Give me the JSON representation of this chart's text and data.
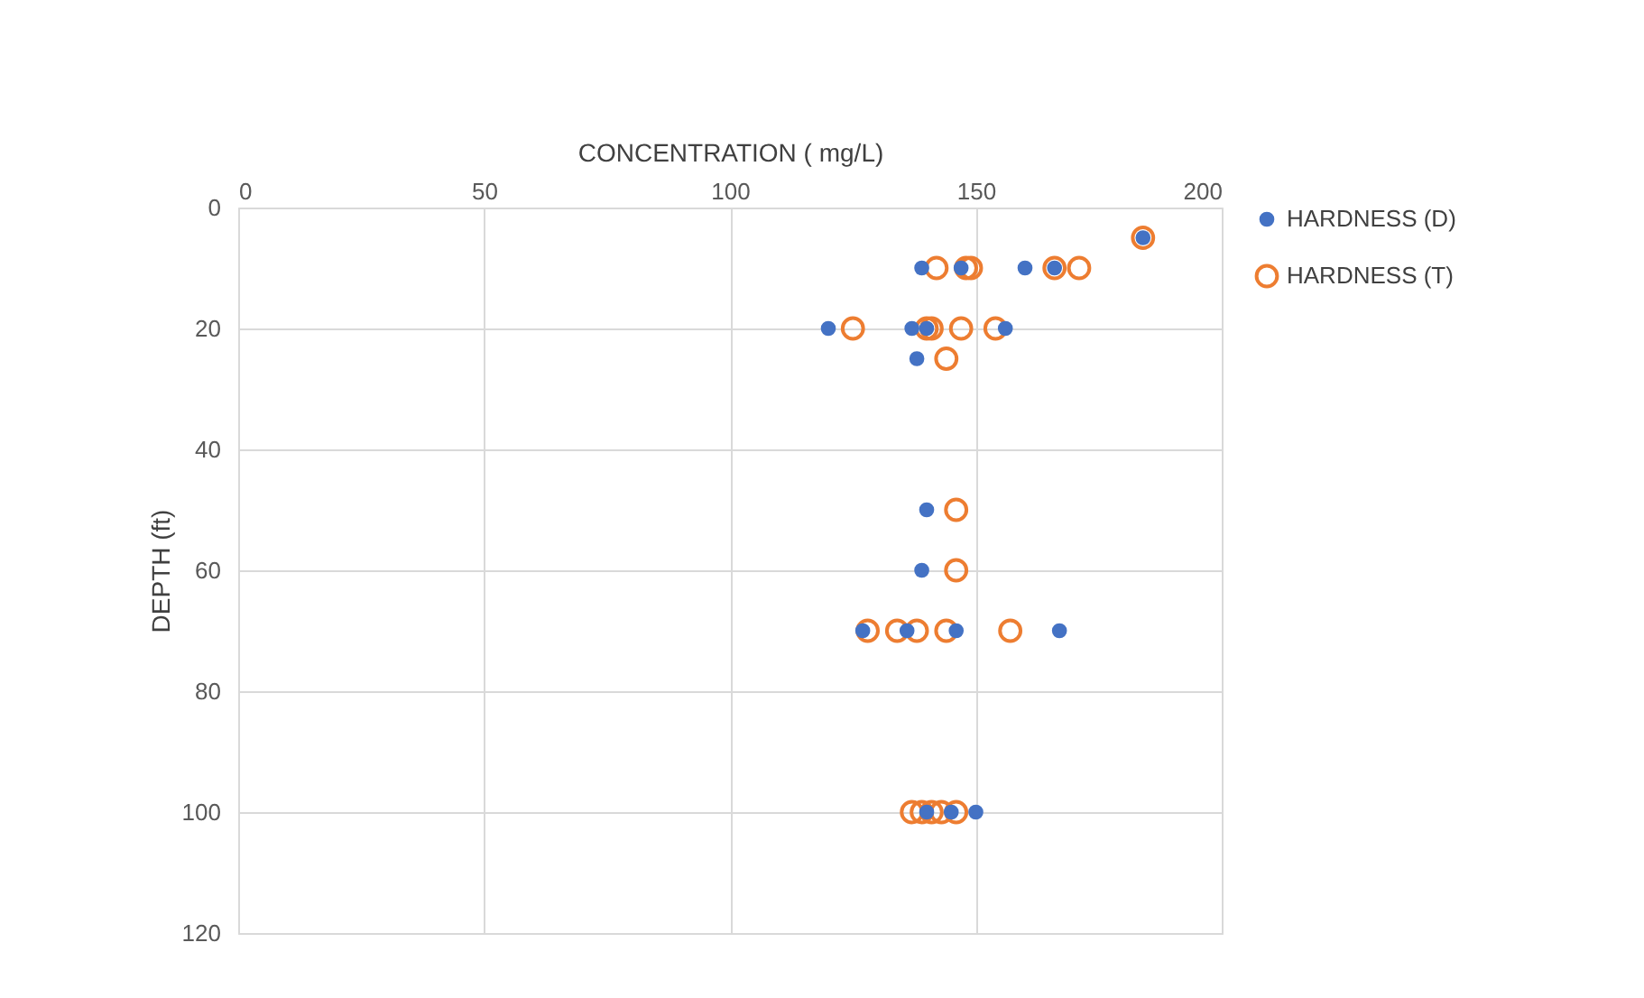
{
  "chart_data": {
    "type": "scatter",
    "xlabel": "CONCENTRATION ( mg/L)",
    "ylabel": "DEPTH (ft)",
    "xlim": [
      0,
      200
    ],
    "xticks": [
      0,
      50,
      100,
      150,
      200
    ],
    "ylim": [
      120,
      0
    ],
    "yticks": [
      0,
      20,
      40,
      60,
      80,
      100,
      120
    ],
    "grid": true,
    "legend": "right",
    "marker": "circle",
    "series": [
      {
        "name": "HARDNESS (D)",
        "color": "#4472c4",
        "x": [
          184,
          139,
          147,
          160,
          166,
          120,
          137,
          140,
          156,
          138,
          140,
          139,
          127,
          136,
          146,
          167,
          140,
          145,
          150
        ],
        "values": [
          5,
          10,
          10,
          10,
          10,
          20,
          20,
          20,
          20,
          25,
          50,
          60,
          70,
          70,
          70,
          70,
          100,
          100,
          100
        ]
      },
      {
        "name": "HARDNESS (T)",
        "color": "#ed7d31",
        "x": [
          184,
          142,
          148,
          149,
          166,
          171,
          125,
          140,
          141,
          147,
          154,
          144,
          146,
          146,
          128,
          134,
          138,
          144,
          157,
          137,
          139,
          141,
          143,
          146
        ],
        "values": [
          5,
          10,
          10,
          10,
          10,
          10,
          20,
          20,
          20,
          20,
          20,
          25,
          50,
          60,
          70,
          70,
          70,
          70,
          70,
          100,
          100,
          100,
          100,
          100
        ]
      }
    ]
  }
}
